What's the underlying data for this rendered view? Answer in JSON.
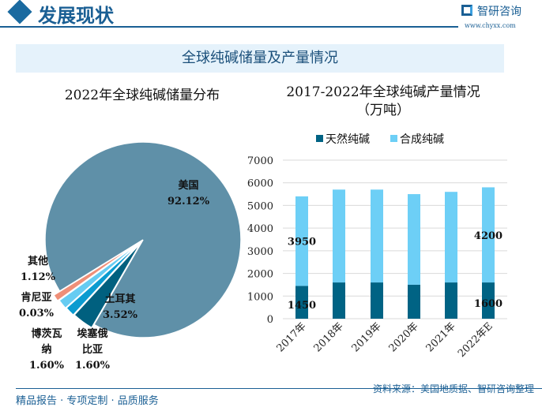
{
  "header": {
    "title": "发展现状",
    "brand": "智研咨询",
    "url": "www.chyxx.com"
  },
  "banner": {
    "title": "全球纯碱储量及产量情况"
  },
  "footer": {
    "tagline": "精品报告 · 专项定制 · 品质服务",
    "source": "资料来源：美国地质据、智研咨询整理"
  },
  "chart_data": [
    {
      "type": "pie",
      "title": "2022年全球纯碱储量分布",
      "slices": [
        {
          "label": "美国",
          "value": 92.12,
          "text": "92.12%",
          "color": "#5f90a8"
        },
        {
          "label": "土耳其",
          "value": 3.52,
          "text": "3.52%",
          "color": "#00607f"
        },
        {
          "label": "埃塞俄比亚",
          "value": 1.6,
          "text": "1.60%",
          "color": "#0a9bd0"
        },
        {
          "label": "博茨瓦纳",
          "value": 1.6,
          "text": "1.60%",
          "color": "#66ccf2"
        },
        {
          "label": "肯尼亚",
          "value": 0.03,
          "text": "0.03%",
          "color": "#9fd8ef"
        },
        {
          "label": "其他",
          "value": 1.12,
          "text": "1.12%",
          "color": "#ef8f78"
        }
      ]
    },
    {
      "type": "bar",
      "stacked": true,
      "title": "2017-2022年全球纯碱产量情况",
      "subtitle": "（万吨）",
      "categories": [
        "2017年",
        "2018年",
        "2019年",
        "2020年",
        "2021年",
        "2022年E"
      ],
      "series": [
        {
          "name": "天然纯碱",
          "values": [
            1450,
            1600,
            1600,
            1500,
            1600,
            1600
          ],
          "color": "#006384"
        },
        {
          "name": "合成纯碱",
          "values": [
            3950,
            4100,
            4100,
            4000,
            4000,
            4200
          ],
          "color": "#6dcff6"
        }
      ],
      "data_labels": [
        {
          "series": 0,
          "index": 0,
          "text": "1450"
        },
        {
          "series": 1,
          "index": 0,
          "text": "3950"
        },
        {
          "series": 0,
          "index": 5,
          "text": "1600"
        },
        {
          "series": 1,
          "index": 5,
          "text": "4200"
        }
      ],
      "ylim": [
        0,
        7000
      ],
      "yticks": [
        "0",
        "1000",
        "2000",
        "3000",
        "4000",
        "5000",
        "6000",
        "7000"
      ],
      "grid": true,
      "legend": "top"
    }
  ]
}
